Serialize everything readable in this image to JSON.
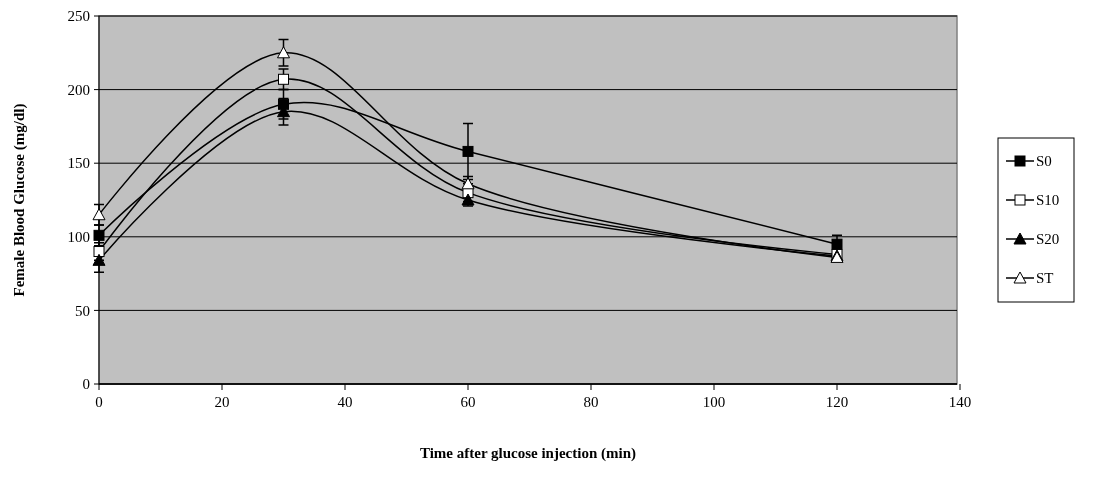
{
  "chart_data": {
    "type": "line",
    "xlabel": "Time after glucose injection (min)",
    "ylabel": "Female Blood Glucose (mg/dl)",
    "x": [
      0,
      30,
      60,
      120
    ],
    "xlim": [
      0,
      140
    ],
    "xticks": [
      0,
      20,
      40,
      60,
      80,
      100,
      120,
      140
    ],
    "ylim": [
      0,
      250
    ],
    "yticks": [
      0,
      50,
      100,
      150,
      200,
      250
    ],
    "grid": "y",
    "legend": "right",
    "series": [
      {
        "name": "S0",
        "color": "#000000",
        "marker": "square",
        "values": [
          101,
          190,
          158,
          95
        ],
        "errors": [
          7,
          10,
          19,
          6
        ]
      },
      {
        "name": "S10",
        "color": "#ffffff",
        "marker": "square",
        "values": [
          90,
          207,
          130,
          88
        ],
        "errors": [
          6,
          7,
          6,
          null
        ]
      },
      {
        "name": "S20",
        "color": "#000000",
        "marker": "triangle",
        "values": [
          84,
          185,
          125,
          87
        ],
        "errors": [
          8,
          9,
          4,
          null
        ]
      },
      {
        "name": "ST",
        "color": "#ffffff",
        "marker": "triangle",
        "values": [
          115,
          225,
          136,
          86
        ],
        "errors": [
          7,
          9,
          5,
          null
        ]
      }
    ]
  }
}
